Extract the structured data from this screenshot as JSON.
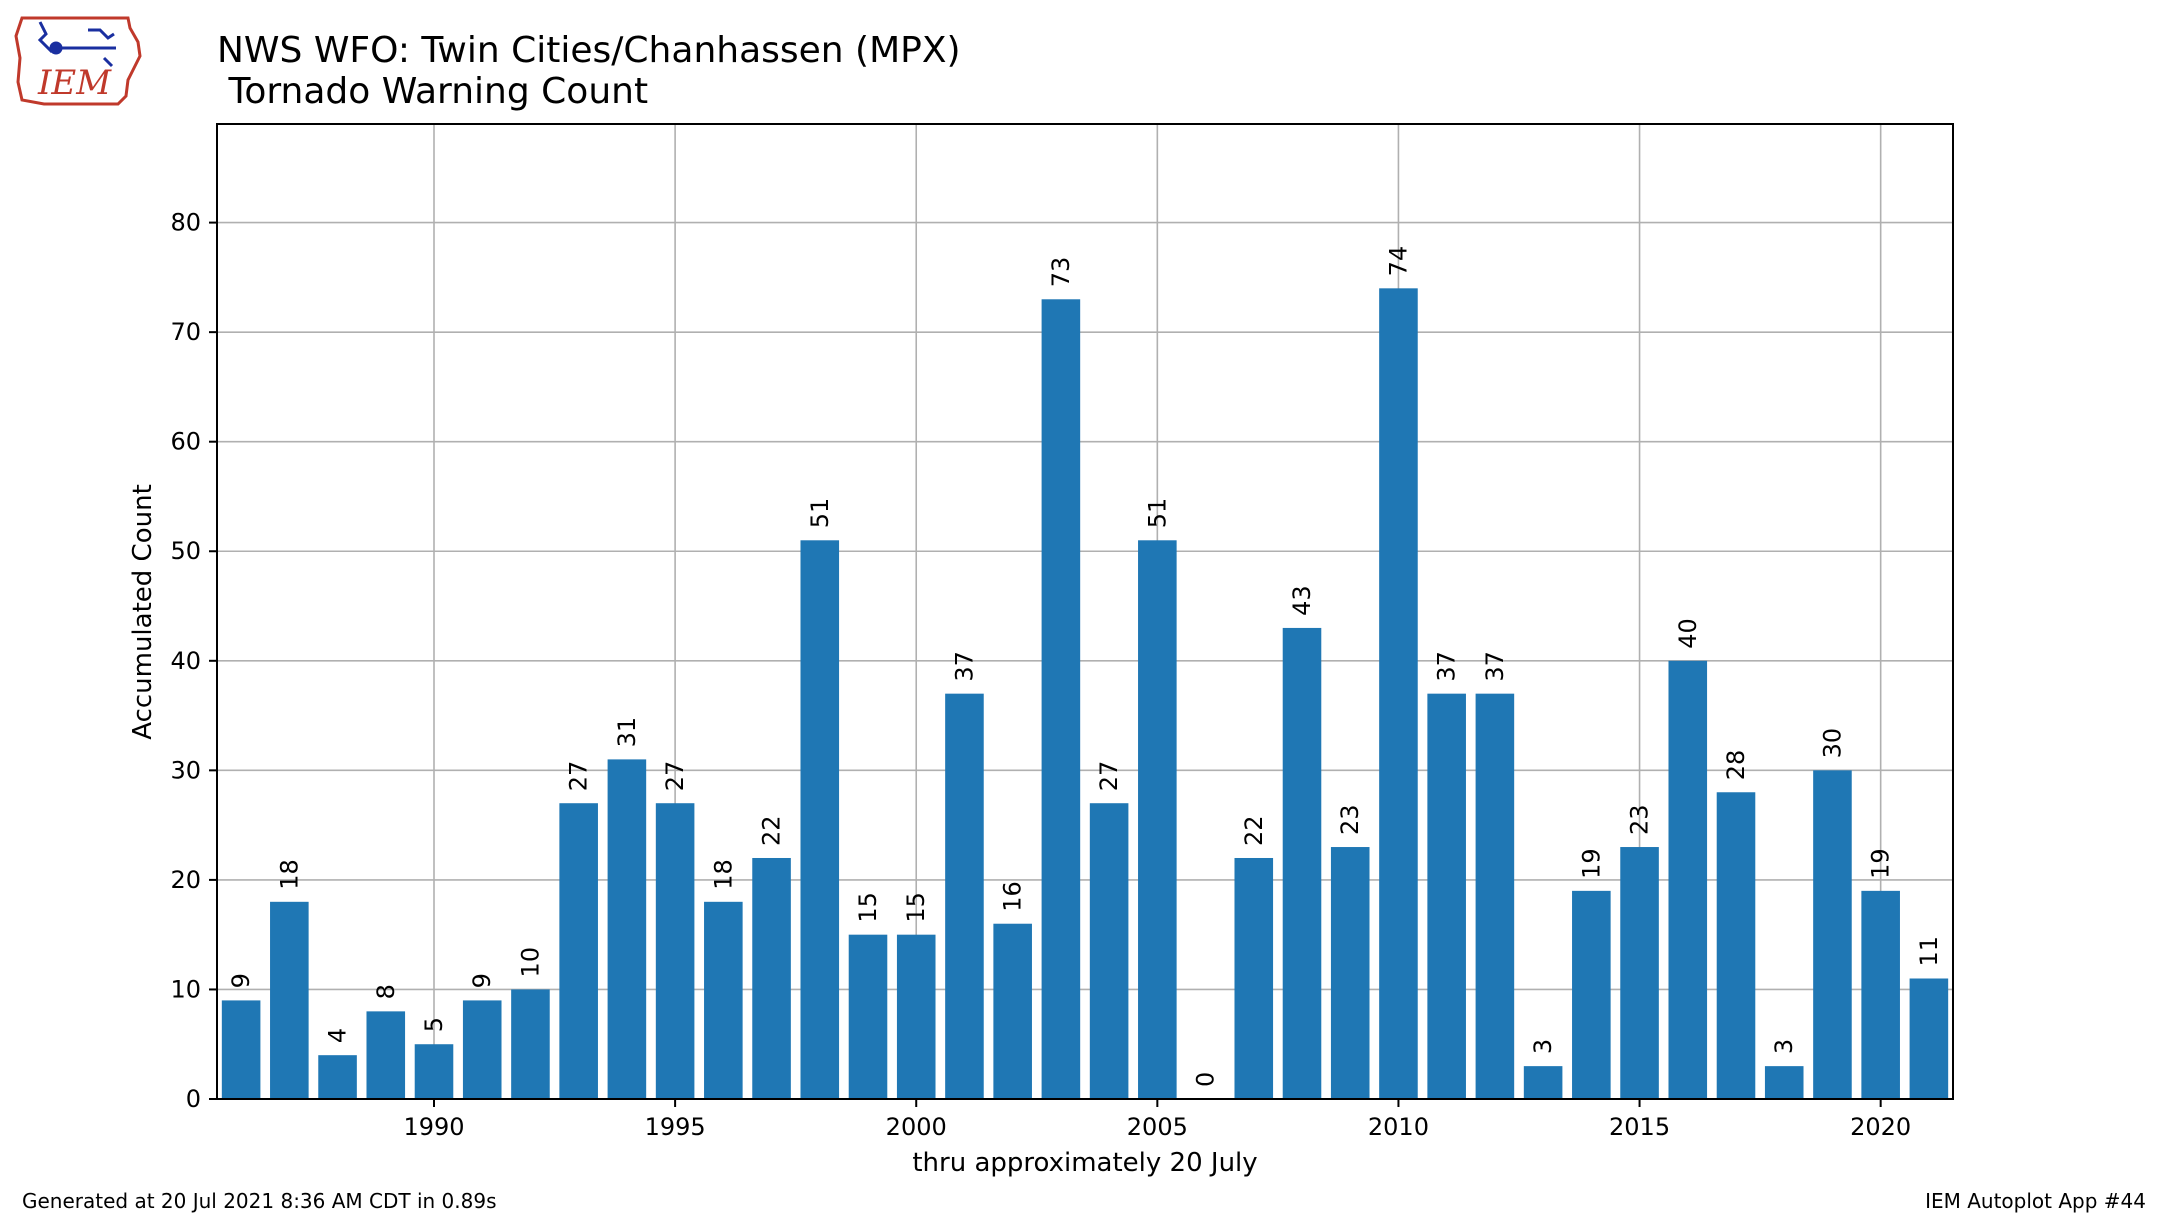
{
  "logo": {
    "text": "IEM",
    "colors": {
      "outline": "#c0392b",
      "text": "#c0392b",
      "symbol": "#1a2fa0"
    }
  },
  "header": {
    "title_line1": "NWS WFO: Twin Cities/Chanhassen (MPX)",
    "title_line2": " Tornado Warning Count"
  },
  "footer": {
    "generated": "Generated at 20 Jul 2021 8:36 AM CDT in 0.89s",
    "app": "IEM Autoplot App #44"
  },
  "chart_data": {
    "type": "bar",
    "title": "NWS WFO: Twin Cities/Chanhassen (MPX)\n Tornado Warning Count",
    "xlabel": "thru approximately 20 July",
    "ylabel": "Accumulated Count",
    "x": [
      1986,
      1987,
      1988,
      1989,
      1990,
      1991,
      1992,
      1993,
      1994,
      1995,
      1996,
      1997,
      1998,
      1999,
      2000,
      2001,
      2002,
      2003,
      2004,
      2005,
      2006,
      2007,
      2008,
      2009,
      2010,
      2011,
      2012,
      2013,
      2014,
      2015,
      2016,
      2017,
      2018,
      2019,
      2020,
      2021
    ],
    "values": [
      9,
      18,
      4,
      8,
      5,
      9,
      10,
      27,
      31,
      27,
      18,
      22,
      51,
      15,
      15,
      37,
      16,
      73,
      27,
      51,
      0,
      22,
      43,
      23,
      74,
      37,
      37,
      3,
      19,
      23,
      40,
      28,
      3,
      30,
      19,
      11
    ],
    "xlim": [
      1985.5,
      2021.5
    ],
    "ylim": [
      0,
      89
    ],
    "xticks": [
      1990,
      1995,
      2000,
      2005,
      2010,
      2015,
      2020
    ],
    "yticks": [
      0,
      10,
      20,
      30,
      40,
      50,
      60,
      70,
      80
    ],
    "bar_color": "#1f77b4",
    "grid": true,
    "data_labels": true
  }
}
